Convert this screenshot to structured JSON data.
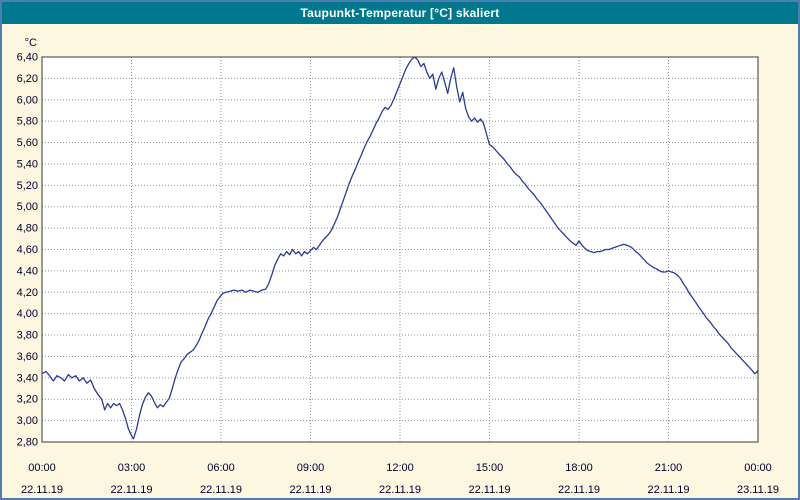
{
  "window": {
    "title": "Taupunkt-Temperatur [°C] skaliert"
  },
  "colors": {
    "titlebar": "#00798e",
    "frame": "#4d7eb3",
    "background": "#fdf7e0",
    "plot_bg": "#ffffff",
    "grid": "#8f8f9f",
    "line": "#2a3b9a",
    "axis_text": "#000030",
    "plot_border": "#3a3a3a"
  },
  "chart_data": {
    "type": "line",
    "title": "Taupunkt-Temperatur [°C] skaliert",
    "xlabel": "",
    "ylabel": "°C",
    "ylim": [
      2.8,
      6.4
    ],
    "ytick_step": 0.2,
    "decimal_separator": ",",
    "grid": true,
    "legend_position": "none",
    "x_minutes_range": [
      0,
      1440
    ],
    "xticks": [
      {
        "minutes": 0,
        "time": "00:00",
        "date": "22.11.19"
      },
      {
        "minutes": 180,
        "time": "03:00",
        "date": "22.11.19"
      },
      {
        "minutes": 360,
        "time": "06:00",
        "date": "22.11.19"
      },
      {
        "minutes": 540,
        "time": "09:00",
        "date": "22.11.19"
      },
      {
        "minutes": 720,
        "time": "12:00",
        "date": "22.11.19"
      },
      {
        "minutes": 900,
        "time": "15:00",
        "date": "22.11.19"
      },
      {
        "minutes": 1080,
        "time": "18:00",
        "date": "22.11.19"
      },
      {
        "minutes": 1260,
        "time": "21:00",
        "date": "22.11.19"
      },
      {
        "minutes": 1440,
        "time": "00:00",
        "date": "23.11.19"
      }
    ],
    "series": [
      {
        "name": "Taupunkt-Temperatur",
        "points": [
          [
            0,
            3.44
          ],
          [
            8,
            3.46
          ],
          [
            15,
            3.42
          ],
          [
            23,
            3.37
          ],
          [
            30,
            3.42
          ],
          [
            38,
            3.4
          ],
          [
            45,
            3.37
          ],
          [
            53,
            3.43
          ],
          [
            60,
            3.4
          ],
          [
            68,
            3.42
          ],
          [
            75,
            3.37
          ],
          [
            83,
            3.4
          ],
          [
            90,
            3.35
          ],
          [
            98,
            3.38
          ],
          [
            105,
            3.3
          ],
          [
            113,
            3.24
          ],
          [
            120,
            3.2
          ],
          [
            126,
            3.1
          ],
          [
            132,
            3.16
          ],
          [
            138,
            3.12
          ],
          [
            144,
            3.16
          ],
          [
            150,
            3.14
          ],
          [
            156,
            3.16
          ],
          [
            162,
            3.1
          ],
          [
            168,
            3.02
          ],
          [
            174,
            2.92
          ],
          [
            180,
            2.86
          ],
          [
            184,
            2.83
          ],
          [
            190,
            2.92
          ],
          [
            196,
            3.05
          ],
          [
            202,
            3.15
          ],
          [
            208,
            3.22
          ],
          [
            214,
            3.26
          ],
          [
            220,
            3.23
          ],
          [
            226,
            3.17
          ],
          [
            232,
            3.12
          ],
          [
            238,
            3.15
          ],
          [
            244,
            3.13
          ],
          [
            250,
            3.17
          ],
          [
            256,
            3.21
          ],
          [
            262,
            3.3
          ],
          [
            268,
            3.4
          ],
          [
            274,
            3.48
          ],
          [
            280,
            3.55
          ],
          [
            286,
            3.58
          ],
          [
            292,
            3.62
          ],
          [
            298,
            3.64
          ],
          [
            304,
            3.66
          ],
          [
            310,
            3.7
          ],
          [
            316,
            3.75
          ],
          [
            322,
            3.82
          ],
          [
            328,
            3.88
          ],
          [
            334,
            3.95
          ],
          [
            340,
            4.0
          ],
          [
            346,
            4.06
          ],
          [
            352,
            4.12
          ],
          [
            358,
            4.16
          ],
          [
            364,
            4.19
          ],
          [
            370,
            4.2
          ],
          [
            378,
            4.21
          ],
          [
            386,
            4.22
          ],
          [
            394,
            4.21
          ],
          [
            402,
            4.22
          ],
          [
            410,
            4.2
          ],
          [
            418,
            4.22
          ],
          [
            426,
            4.21
          ],
          [
            434,
            4.2
          ],
          [
            442,
            4.22
          ],
          [
            450,
            4.23
          ],
          [
            456,
            4.28
          ],
          [
            462,
            4.36
          ],
          [
            468,
            4.45
          ],
          [
            474,
            4.51
          ],
          [
            480,
            4.56
          ],
          [
            486,
            4.54
          ],
          [
            492,
            4.58
          ],
          [
            498,
            4.55
          ],
          [
            504,
            4.6
          ],
          [
            510,
            4.56
          ],
          [
            516,
            4.58
          ],
          [
            522,
            4.54
          ],
          [
            528,
            4.58
          ],
          [
            534,
            4.56
          ],
          [
            540,
            4.59
          ],
          [
            546,
            4.62
          ],
          [
            552,
            4.6
          ],
          [
            558,
            4.64
          ],
          [
            564,
            4.68
          ],
          [
            570,
            4.71
          ],
          [
            576,
            4.74
          ],
          [
            582,
            4.78
          ],
          [
            588,
            4.84
          ],
          [
            594,
            4.9
          ],
          [
            600,
            4.98
          ],
          [
            606,
            5.06
          ],
          [
            612,
            5.14
          ],
          [
            618,
            5.22
          ],
          [
            624,
            5.29
          ],
          [
            630,
            5.35
          ],
          [
            636,
            5.42
          ],
          [
            642,
            5.48
          ],
          [
            648,
            5.55
          ],
          [
            654,
            5.61
          ],
          [
            660,
            5.66
          ],
          [
            666,
            5.72
          ],
          [
            672,
            5.78
          ],
          [
            678,
            5.83
          ],
          [
            684,
            5.89
          ],
          [
            690,
            5.93
          ],
          [
            696,
            5.91
          ],
          [
            702,
            5.95
          ],
          [
            708,
            6.01
          ],
          [
            714,
            6.08
          ],
          [
            720,
            6.15
          ],
          [
            726,
            6.22
          ],
          [
            732,
            6.29
          ],
          [
            738,
            6.34
          ],
          [
            744,
            6.38
          ],
          [
            750,
            6.4
          ],
          [
            756,
            6.37
          ],
          [
            762,
            6.31
          ],
          [
            768,
            6.34
          ],
          [
            774,
            6.26
          ],
          [
            780,
            6.2
          ],
          [
            786,
            6.24
          ],
          [
            792,
            6.1
          ],
          [
            798,
            6.2
          ],
          [
            804,
            6.26
          ],
          [
            810,
            6.16
          ],
          [
            816,
            6.06
          ],
          [
            822,
            6.2
          ],
          [
            828,
            6.3
          ],
          [
            834,
            6.12
          ],
          [
            840,
            5.98
          ],
          [
            846,
            6.07
          ],
          [
            852,
            5.92
          ],
          [
            858,
            5.84
          ],
          [
            864,
            5.8
          ],
          [
            870,
            5.83
          ],
          [
            876,
            5.79
          ],
          [
            882,
            5.82
          ],
          [
            888,
            5.78
          ],
          [
            894,
            5.68
          ],
          [
            900,
            5.58
          ],
          [
            906,
            5.56
          ],
          [
            912,
            5.53
          ],
          [
            918,
            5.5
          ],
          [
            924,
            5.47
          ],
          [
            930,
            5.44
          ],
          [
            936,
            5.4
          ],
          [
            942,
            5.37
          ],
          [
            948,
            5.33
          ],
          [
            954,
            5.3
          ],
          [
            960,
            5.28
          ],
          [
            966,
            5.24
          ],
          [
            972,
            5.21
          ],
          [
            978,
            5.17
          ],
          [
            984,
            5.14
          ],
          [
            990,
            5.11
          ],
          [
            996,
            5.07
          ],
          [
            1002,
            5.04
          ],
          [
            1008,
            5.0
          ],
          [
            1014,
            4.96
          ],
          [
            1020,
            4.92
          ],
          [
            1026,
            4.88
          ],
          [
            1032,
            4.84
          ],
          [
            1038,
            4.8
          ],
          [
            1044,
            4.77
          ],
          [
            1050,
            4.74
          ],
          [
            1056,
            4.71
          ],
          [
            1062,
            4.68
          ],
          [
            1068,
            4.66
          ],
          [
            1074,
            4.64
          ],
          [
            1080,
            4.68
          ],
          [
            1086,
            4.64
          ],
          [
            1092,
            4.61
          ],
          [
            1098,
            4.59
          ],
          [
            1104,
            4.58
          ],
          [
            1110,
            4.57
          ],
          [
            1116,
            4.58
          ],
          [
            1122,
            4.58
          ],
          [
            1128,
            4.59
          ],
          [
            1134,
            4.6
          ],
          [
            1140,
            4.6
          ],
          [
            1146,
            4.61
          ],
          [
            1152,
            4.62
          ],
          [
            1158,
            4.63
          ],
          [
            1164,
            4.64
          ],
          [
            1170,
            4.65
          ],
          [
            1176,
            4.64
          ],
          [
            1182,
            4.63
          ],
          [
            1188,
            4.61
          ],
          [
            1194,
            4.58
          ],
          [
            1200,
            4.56
          ],
          [
            1206,
            4.53
          ],
          [
            1212,
            4.5
          ],
          [
            1218,
            4.47
          ],
          [
            1224,
            4.45
          ],
          [
            1230,
            4.43
          ],
          [
            1236,
            4.42
          ],
          [
            1242,
            4.4
          ],
          [
            1248,
            4.39
          ],
          [
            1254,
            4.39
          ],
          [
            1260,
            4.4
          ],
          [
            1266,
            4.39
          ],
          [
            1272,
            4.38
          ],
          [
            1278,
            4.36
          ],
          [
            1284,
            4.33
          ],
          [
            1290,
            4.28
          ],
          [
            1296,
            4.24
          ],
          [
            1302,
            4.19
          ],
          [
            1308,
            4.15
          ],
          [
            1314,
            4.11
          ],
          [
            1320,
            4.07
          ],
          [
            1326,
            4.03
          ],
          [
            1332,
            3.99
          ],
          [
            1338,
            3.95
          ],
          [
            1344,
            3.92
          ],
          [
            1350,
            3.88
          ],
          [
            1356,
            3.85
          ],
          [
            1362,
            3.81
          ],
          [
            1368,
            3.78
          ],
          [
            1374,
            3.75
          ],
          [
            1380,
            3.72
          ],
          [
            1386,
            3.68
          ],
          [
            1392,
            3.65
          ],
          [
            1398,
            3.62
          ],
          [
            1404,
            3.59
          ],
          [
            1410,
            3.56
          ],
          [
            1416,
            3.53
          ],
          [
            1422,
            3.5
          ],
          [
            1428,
            3.47
          ],
          [
            1433,
            3.44
          ],
          [
            1437,
            3.45
          ],
          [
            1440,
            3.47
          ]
        ]
      }
    ]
  }
}
